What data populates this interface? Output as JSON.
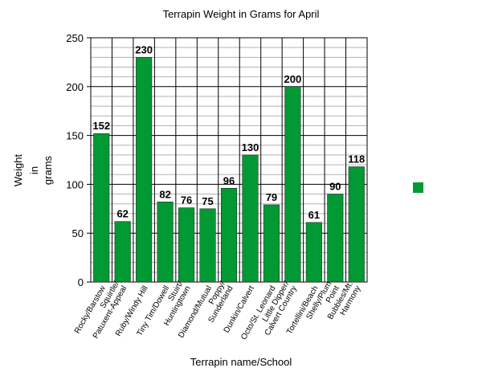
{
  "chart_data": {
    "type": "bar",
    "title": "Terrapin Weight in Grams for April",
    "xlabel": "Terrapin name/School",
    "ylabel": [
      "Weight",
      "in",
      "grams"
    ],
    "ylim": [
      0,
      250
    ],
    "yticks": [
      0,
      50,
      100,
      150,
      200,
      250
    ],
    "grid": true,
    "legend": "right",
    "bar_color": "#009933",
    "categories": [
      [
        "Rocky/Barstow"
      ],
      [
        "Squirtle/",
        "Patuxent-Appeal"
      ],
      [
        "Ruby/Windy Hill"
      ],
      [
        "Tiny Tim/Dowell"
      ],
      [
        "Stuirt/",
        "Huntingtown"
      ],
      [
        "Diamond/Mutual"
      ],
      [
        "Poppy/",
        "Sunderland"
      ],
      [
        "Dunkin/Calvert"
      ],
      [
        "Octo/St. Leonard"
      ],
      [
        "Little Dipper/",
        "Calvert Country"
      ],
      [
        "Tortellini/Beach"
      ],
      [
        "Shelly/Plum",
        "Point"
      ],
      [
        "Bubbles/Mt.",
        "Harmony"
      ]
    ],
    "values": [
      152,
      62,
      230,
      82,
      76,
      75,
      96,
      130,
      79,
      200,
      61,
      90,
      118
    ]
  }
}
